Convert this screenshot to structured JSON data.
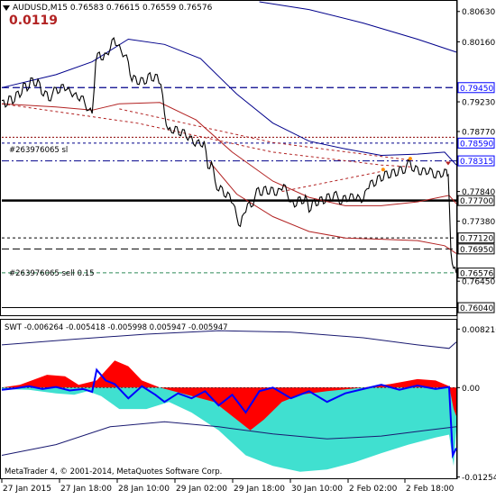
{
  "header": {
    "title": "AUDUSD,M15  0.76583  0.76615  0.76559  0.76576",
    "big_value": "0.0119"
  },
  "orders": [
    {
      "label": "#263976065 sl"
    },
    {
      "label": "#263976065 sell 0.15"
    }
  ],
  "price_axis": {
    "ticks": [
      {
        "label": "0.80630",
        "v": 0.8063,
        "style": "tick"
      },
      {
        "label": "0.80160",
        "v": 0.8016,
        "style": "tick"
      },
      {
        "label": "0.79450",
        "v": 0.7945,
        "style": "box-blue"
      },
      {
        "label": "0.79230",
        "v": 0.7923,
        "style": "tick"
      },
      {
        "label": "0.78770",
        "v": 0.7877,
        "style": "tick"
      },
      {
        "label": "0.78590",
        "v": 0.7859,
        "style": "box-blue"
      },
      {
        "label": "0.78315",
        "v": 0.78315,
        "style": "box-blue"
      },
      {
        "label": "0.77840",
        "v": 0.7784,
        "style": "tick"
      },
      {
        "label": "0.77700",
        "v": 0.777,
        "style": "box-black"
      },
      {
        "label": "0.77380",
        "v": 0.7738,
        "style": "tick"
      },
      {
        "label": "0.77120",
        "v": 0.7712,
        "style": "box-black"
      },
      {
        "label": "0.76950",
        "v": 0.7695,
        "style": "box-black"
      },
      {
        "label": "0.76576",
        "v": 0.76576,
        "style": "box-black"
      },
      {
        "label": "0.76450",
        "v": 0.7645,
        "style": "tick"
      },
      {
        "label": "0.76040",
        "v": 0.7604,
        "style": "box-black"
      }
    ],
    "min": 0.7595,
    "max": 0.8078
  },
  "levels": [
    {
      "v": 0.7945,
      "color": "#00008b",
      "dash": "8,4",
      "w": 1.2
    },
    {
      "v": 0.7859,
      "color": "#00008b",
      "dash": "3,3",
      "w": 1
    },
    {
      "v": 0.78315,
      "color": "#00008b",
      "dash": "8,3,2,3",
      "w": 1
    },
    {
      "v": 0.777,
      "color": "#000000",
      "dash": "",
      "w": 2.5
    },
    {
      "v": 0.7712,
      "color": "#000000",
      "dash": "3,3",
      "w": 1
    },
    {
      "v": 0.7695,
      "color": "#000000",
      "dash": "8,4",
      "w": 1
    },
    {
      "v": 0.7604,
      "color": "#000000",
      "dash": "",
      "w": 1
    }
  ],
  "indicator": {
    "label": "SWT -0.006264 -0.005418 -0.005998 0.005947 -0.005947",
    "ticks": [
      {
        "label": "0.008216",
        "v": 0.008216
      },
      {
        "label": "0.00",
        "v": 0
      },
      {
        "label": "-0.012543",
        "v": -0.012543
      }
    ],
    "min": -0.0126,
    "max": 0.0094
  },
  "time_axis": {
    "labels": [
      "27 Jan 2015",
      "27 Jan 18:00",
      "28 Jan 10:00",
      "29 Jan 02:00",
      "29 Jan 18:00",
      "30 Jan 10:00",
      "2 Feb 02:00",
      "2 Feb 18:00"
    ]
  },
  "footer": {
    "copyright": "MetaTrader 4, © 2001-2014, MetaQuotes Software Corp."
  },
  "chart_data": {
    "type": "line",
    "symbol": "AUDUSD",
    "timeframe": "M15",
    "price_series": [
      {
        "t": 0,
        "v": 0.7925
      },
      {
        "t": 4,
        "v": 0.7915
      },
      {
        "t": 8,
        "v": 0.7932
      },
      {
        "t": 12,
        "v": 0.792
      },
      {
        "t": 16,
        "v": 0.7938
      },
      {
        "t": 20,
        "v": 0.793
      },
      {
        "t": 24,
        "v": 0.7952
      },
      {
        "t": 28,
        "v": 0.794
      },
      {
        "t": 32,
        "v": 0.796
      },
      {
        "t": 36,
        "v": 0.7948
      },
      {
        "t": 40,
        "v": 0.7958
      },
      {
        "t": 44,
        "v": 0.7935
      },
      {
        "t": 48,
        "v": 0.794
      },
      {
        "t": 52,
        "v": 0.7925
      },
      {
        "t": 56,
        "v": 0.7935
      },
      {
        "t": 60,
        "v": 0.7945
      },
      {
        "t": 64,
        "v": 0.7938
      },
      {
        "t": 68,
        "v": 0.795
      },
      {
        "t": 72,
        "v": 0.7942
      },
      {
        "t": 76,
        "v": 0.7938
      },
      {
        "t": 80,
        "v": 0.7935
      },
      {
        "t": 84,
        "v": 0.7928
      },
      {
        "t": 88,
        "v": 0.7932
      },
      {
        "t": 92,
        "v": 0.792
      },
      {
        "t": 96,
        "v": 0.791
      },
      {
        "t": 100,
        "v": 0.7905
      },
      {
        "t": 104,
        "v": 0.7985
      },
      {
        "t": 108,
        "v": 0.8
      },
      {
        "t": 112,
        "v": 0.7988
      },
      {
        "t": 116,
        "v": 0.7998
      },
      {
        "t": 120,
        "v": 0.8005
      },
      {
        "t": 124,
        "v": 0.8022
      },
      {
        "t": 128,
        "v": 0.801
      },
      {
        "t": 132,
        "v": 0.8002
      },
      {
        "t": 136,
        "v": 0.7995
      },
      {
        "t": 140,
        "v": 0.7985
      },
      {
        "t": 144,
        "v": 0.7955
      },
      {
        "t": 148,
        "v": 0.7962
      },
      {
        "t": 152,
        "v": 0.795
      },
      {
        "t": 156,
        "v": 0.796
      },
      {
        "t": 160,
        "v": 0.7952
      },
      {
        "t": 164,
        "v": 0.7968
      },
      {
        "t": 168,
        "v": 0.7955
      },
      {
        "t": 172,
        "v": 0.7965
      },
      {
        "t": 176,
        "v": 0.795
      },
      {
        "t": 180,
        "v": 0.7905
      },
      {
        "t": 184,
        "v": 0.788
      },
      {
        "t": 188,
        "v": 0.7875
      },
      {
        "t": 192,
        "v": 0.7885
      },
      {
        "t": 196,
        "v": 0.7872
      },
      {
        "t": 200,
        "v": 0.788
      },
      {
        "t": 204,
        "v": 0.7868
      },
      {
        "t": 208,
        "v": 0.787
      },
      {
        "t": 212,
        "v": 0.7858
      },
      {
        "t": 216,
        "v": 0.7862
      },
      {
        "t": 220,
        "v": 0.7855
      },
      {
        "t": 224,
        "v": 0.7862
      },
      {
        "t": 228,
        "v": 0.782
      },
      {
        "t": 232,
        "v": 0.783
      },
      {
        "t": 236,
        "v": 0.78
      },
      {
        "t": 240,
        "v": 0.7785
      },
      {
        "t": 244,
        "v": 0.779
      },
      {
        "t": 248,
        "v": 0.7775
      },
      {
        "t": 252,
        "v": 0.778
      },
      {
        "t": 256,
        "v": 0.7765
      },
      {
        "t": 260,
        "v": 0.7745
      },
      {
        "t": 264,
        "v": 0.773
      },
      {
        "t": 268,
        "v": 0.775
      },
      {
        "t": 272,
        "v": 0.7765
      },
      {
        "t": 276,
        "v": 0.776
      },
      {
        "t": 280,
        "v": 0.7775
      },
      {
        "t": 284,
        "v": 0.779
      },
      {
        "t": 288,
        "v": 0.7778
      },
      {
        "t": 292,
        "v": 0.7792
      },
      {
        "t": 296,
        "v": 0.778
      },
      {
        "t": 300,
        "v": 0.779
      },
      {
        "t": 304,
        "v": 0.7778
      },
      {
        "t": 308,
        "v": 0.7788
      },
      {
        "t": 312,
        "v": 0.7795
      },
      {
        "t": 316,
        "v": 0.778
      },
      {
        "t": 320,
        "v": 0.7768
      },
      {
        "t": 324,
        "v": 0.776
      },
      {
        "t": 328,
        "v": 0.7775
      },
      {
        "t": 332,
        "v": 0.7765
      },
      {
        "t": 336,
        "v": 0.7778
      },
      {
        "t": 340,
        "v": 0.7752
      },
      {
        "t": 344,
        "v": 0.777
      },
      {
        "t": 348,
        "v": 0.7762
      },
      {
        "t": 352,
        "v": 0.7775
      },
      {
        "t": 356,
        "v": 0.7765
      },
      {
        "t": 360,
        "v": 0.778
      },
      {
        "t": 364,
        "v": 0.777
      },
      {
        "t": 368,
        "v": 0.7782
      },
      {
        "t": 372,
        "v": 0.7775
      },
      {
        "t": 376,
        "v": 0.7765
      },
      {
        "t": 380,
        "v": 0.7778
      },
      {
        "t": 384,
        "v": 0.777
      },
      {
        "t": 388,
        "v": 0.778
      },
      {
        "t": 392,
        "v": 0.7772
      },
      {
        "t": 396,
        "v": 0.7775
      },
      {
        "t": 400,
        "v": 0.777
      },
      {
        "t": 404,
        "v": 0.7788
      },
      {
        "t": 408,
        "v": 0.78
      },
      {
        "t": 412,
        "v": 0.7792
      },
      {
        "t": 416,
        "v": 0.7808
      },
      {
        "t": 420,
        "v": 0.78
      },
      {
        "t": 424,
        "v": 0.7815
      },
      {
        "t": 428,
        "v": 0.7805
      },
      {
        "t": 432,
        "v": 0.7818
      },
      {
        "t": 436,
        "v": 0.7808
      },
      {
        "t": 440,
        "v": 0.7822
      },
      {
        "t": 444,
        "v": 0.7812
      },
      {
        "t": 448,
        "v": 0.7825
      },
      {
        "t": 452,
        "v": 0.783
      },
      {
        "t": 456,
        "v": 0.7815
      },
      {
        "t": 460,
        "v": 0.7822
      },
      {
        "t": 464,
        "v": 0.781
      },
      {
        "t": 468,
        "v": 0.782
      },
      {
        "t": 472,
        "v": 0.7812
      },
      {
        "t": 476,
        "v": 0.7818
      },
      {
        "t": 480,
        "v": 0.7805
      },
      {
        "t": 484,
        "v": 0.7815
      },
      {
        "t": 488,
        "v": 0.7808
      },
      {
        "t": 492,
        "v": 0.7818
      },
      {
        "t": 494,
        "v": 0.781
      },
      {
        "t": 497,
        "v": 0.769
      },
      {
        "t": 500,
        "v": 0.7665
      },
      {
        "t": 503,
        "v": 0.76576
      }
    ],
    "upper_band": [
      {
        "t": 0,
        "v": 0.7945
      },
      {
        "t": 60,
        "v": 0.7965
      },
      {
        "t": 100,
        "v": 0.7985
      },
      {
        "t": 140,
        "v": 0.802
      },
      {
        "t": 180,
        "v": 0.8012
      },
      {
        "t": 220,
        "v": 0.799
      },
      {
        "t": 260,
        "v": 0.7935
      },
      {
        "t": 300,
        "v": 0.789
      },
      {
        "t": 340,
        "v": 0.7862
      },
      {
        "t": 380,
        "v": 0.785
      },
      {
        "t": 420,
        "v": 0.784
      },
      {
        "t": 460,
        "v": 0.7842
      },
      {
        "t": 490,
        "v": 0.7845
      },
      {
        "t": 503,
        "v": 0.7825
      }
    ],
    "middle_ma": [
      {
        "t": 0,
        "v": 0.792
      },
      {
        "t": 60,
        "v": 0.7915
      },
      {
        "t": 100,
        "v": 0.791
      },
      {
        "t": 130,
        "v": 0.792
      },
      {
        "t": 175,
        "v": 0.7922
      },
      {
        "t": 215,
        "v": 0.7895
      },
      {
        "t": 255,
        "v": 0.7845
      },
      {
        "t": 300,
        "v": 0.78
      },
      {
        "t": 340,
        "v": 0.7775
      },
      {
        "t": 380,
        "v": 0.7762
      },
      {
        "t": 420,
        "v": 0.7762
      },
      {
        "t": 460,
        "v": 0.7768
      },
      {
        "t": 495,
        "v": 0.7778
      },
      {
        "t": 503,
        "v": 0.7765
      }
    ],
    "lower_band": [
      {
        "t": 230,
        "v": 0.783
      },
      {
        "t": 260,
        "v": 0.778
      },
      {
        "t": 300,
        "v": 0.7745
      },
      {
        "t": 340,
        "v": 0.7722
      },
      {
        "t": 380,
        "v": 0.7712
      },
      {
        "t": 420,
        "v": 0.771
      },
      {
        "t": 460,
        "v": 0.7708
      },
      {
        "t": 490,
        "v": 0.77
      },
      {
        "t": 503,
        "v": 0.7688
      }
    ],
    "long_ma": [
      {
        "t": 285,
        "v": 0.8078
      },
      {
        "t": 340,
        "v": 0.8066
      },
      {
        "t": 400,
        "v": 0.8045
      },
      {
        "t": 460,
        "v": 0.802
      },
      {
        "t": 503,
        "v": 0.8
      }
    ],
    "trend_dashed": [
      {
        "t": 0,
        "v": 0.792
      },
      {
        "t": 150,
        "v": 0.789
      },
      {
        "t": 300,
        "v": 0.7845
      },
      {
        "t": 420,
        "v": 0.7825
      },
      {
        "t": 455,
        "v": 0.7822
      }
    ],
    "trend_dashed_2": [
      {
        "t": 130,
        "v": 0.7912
      },
      {
        "t": 300,
        "v": 0.786
      },
      {
        "t": 455,
        "v": 0.7832
      }
    ],
    "trend_dashed_3": [
      {
        "t": 310,
        "v": 0.7784
      },
      {
        "t": 420,
        "v": 0.7815
      }
    ],
    "swt": {
      "cyan_area": [
        {
          "t": 0,
          "v": -0.0002
        },
        {
          "t": 30,
          "v": -0.0003
        },
        {
          "t": 60,
          "v": -0.0008
        },
        {
          "t": 80,
          "v": -0.001
        },
        {
          "t": 95,
          "v": -0.0005
        },
        {
          "t": 110,
          "v": -0.0012
        },
        {
          "t": 130,
          "v": -0.003
        },
        {
          "t": 160,
          "v": -0.003
        },
        {
          "t": 185,
          "v": -0.002
        },
        {
          "t": 210,
          "v": -0.0035
        },
        {
          "t": 240,
          "v": -0.006
        },
        {
          "t": 270,
          "v": -0.0095
        },
        {
          "t": 300,
          "v": -0.011
        },
        {
          "t": 330,
          "v": -0.0118
        },
        {
          "t": 360,
          "v": -0.0115
        },
        {
          "t": 390,
          "v": -0.0105
        },
        {
          "t": 420,
          "v": -0.0092
        },
        {
          "t": 450,
          "v": -0.008
        },
        {
          "t": 480,
          "v": -0.007
        },
        {
          "t": 495,
          "v": -0.0066
        },
        {
          "t": 500,
          "v": -0.011
        },
        {
          "t": 503,
          "v": -0.006
        }
      ],
      "red_area": [
        {
          "t": 0,
          "v": 0.0
        },
        {
          "t": 20,
          "v": 0.0004
        },
        {
          "t": 50,
          "v": 0.0018
        },
        {
          "t": 70,
          "v": 0.0016
        },
        {
          "t": 85,
          "v": 0.0004
        },
        {
          "t": 105,
          "v": 0.001
        },
        {
          "t": 125,
          "v": 0.0038
        },
        {
          "t": 140,
          "v": 0.003
        },
        {
          "t": 155,
          "v": 0.001
        },
        {
          "t": 175,
          "v": 0.0
        },
        {
          "t": 205,
          "v": -0.001
        },
        {
          "t": 235,
          "v": -0.002
        },
        {
          "t": 260,
          "v": -0.0045
        },
        {
          "t": 275,
          "v": -0.006
        },
        {
          "t": 290,
          "v": -0.0045
        },
        {
          "t": 310,
          "v": -0.002
        },
        {
          "t": 330,
          "v": -0.001
        },
        {
          "t": 360,
          "v": -0.0005
        },
        {
          "t": 400,
          "v": 0.0
        },
        {
          "t": 430,
          "v": 0.0005
        },
        {
          "t": 460,
          "v": 0.0012
        },
        {
          "t": 480,
          "v": 0.001
        },
        {
          "t": 495,
          "v": 0.0002
        },
        {
          "t": 500,
          "v": -0.003
        },
        {
          "t": 503,
          "v": -0.004
        }
      ],
      "blue_line": [
        {
          "t": 0,
          "v": -0.0003
        },
        {
          "t": 15,
          "v": -0.0001
        },
        {
          "t": 30,
          "v": 0.0002
        },
        {
          "t": 45,
          "v": -0.0002
        },
        {
          "t": 60,
          "v": 0.0001
        },
        {
          "t": 75,
          "v": -0.0004
        },
        {
          "t": 90,
          "v": -0.0002
        },
        {
          "t": 100,
          "v": -0.0006
        },
        {
          "t": 105,
          "v": 0.0025
        },
        {
          "t": 115,
          "v": 0.001
        },
        {
          "t": 125,
          "v": 0.0005
        },
        {
          "t": 140,
          "v": -0.0015
        },
        {
          "t": 155,
          "v": 0.0002
        },
        {
          "t": 170,
          "v": -0.001
        },
        {
          "t": 180,
          "v": -0.002
        },
        {
          "t": 195,
          "v": -0.0008
        },
        {
          "t": 210,
          "v": -0.0015
        },
        {
          "t": 225,
          "v": -0.0005
        },
        {
          "t": 240,
          "v": -0.0025
        },
        {
          "t": 255,
          "v": -0.001
        },
        {
          "t": 270,
          "v": -0.0035
        },
        {
          "t": 285,
          "v": -0.0005
        },
        {
          "t": 300,
          "v": 0.0
        },
        {
          "t": 320,
          "v": -0.0015
        },
        {
          "t": 340,
          "v": -0.0005
        },
        {
          "t": 360,
          "v": -0.002
        },
        {
          "t": 380,
          "v": -0.0008
        },
        {
          "t": 400,
          "v": -0.0002
        },
        {
          "t": 420,
          "v": 0.0004
        },
        {
          "t": 440,
          "v": -0.0003
        },
        {
          "t": 460,
          "v": 0.0003
        },
        {
          "t": 480,
          "v": -0.0002
        },
        {
          "t": 495,
          "v": 0.0001
        },
        {
          "t": 499,
          "v": -0.0095
        },
        {
          "t": 503,
          "v": -0.0085
        }
      ],
      "black_upper": [
        {
          "t": 0,
          "v": 0.006
        },
        {
          "t": 80,
          "v": 0.0068
        },
        {
          "t": 160,
          "v": 0.0075
        },
        {
          "t": 240,
          "v": 0.008
        },
        {
          "t": 320,
          "v": 0.0078
        },
        {
          "t": 400,
          "v": 0.007
        },
        {
          "t": 460,
          "v": 0.006
        },
        {
          "t": 495,
          "v": 0.0055
        },
        {
          "t": 503,
          "v": 0.0064
        }
      ],
      "black_lower": [
        {
          "t": 0,
          "v": -0.0095
        },
        {
          "t": 60,
          "v": -0.008
        },
        {
          "t": 120,
          "v": -0.0055
        },
        {
          "t": 180,
          "v": -0.0048
        },
        {
          "t": 240,
          "v": -0.0055
        },
        {
          "t": 300,
          "v": -0.0065
        },
        {
          "t": 360,
          "v": -0.0072
        },
        {
          "t": 420,
          "v": -0.0068
        },
        {
          "t": 470,
          "v": -0.006
        },
        {
          "t": 503,
          "v": -0.0055
        }
      ]
    }
  }
}
